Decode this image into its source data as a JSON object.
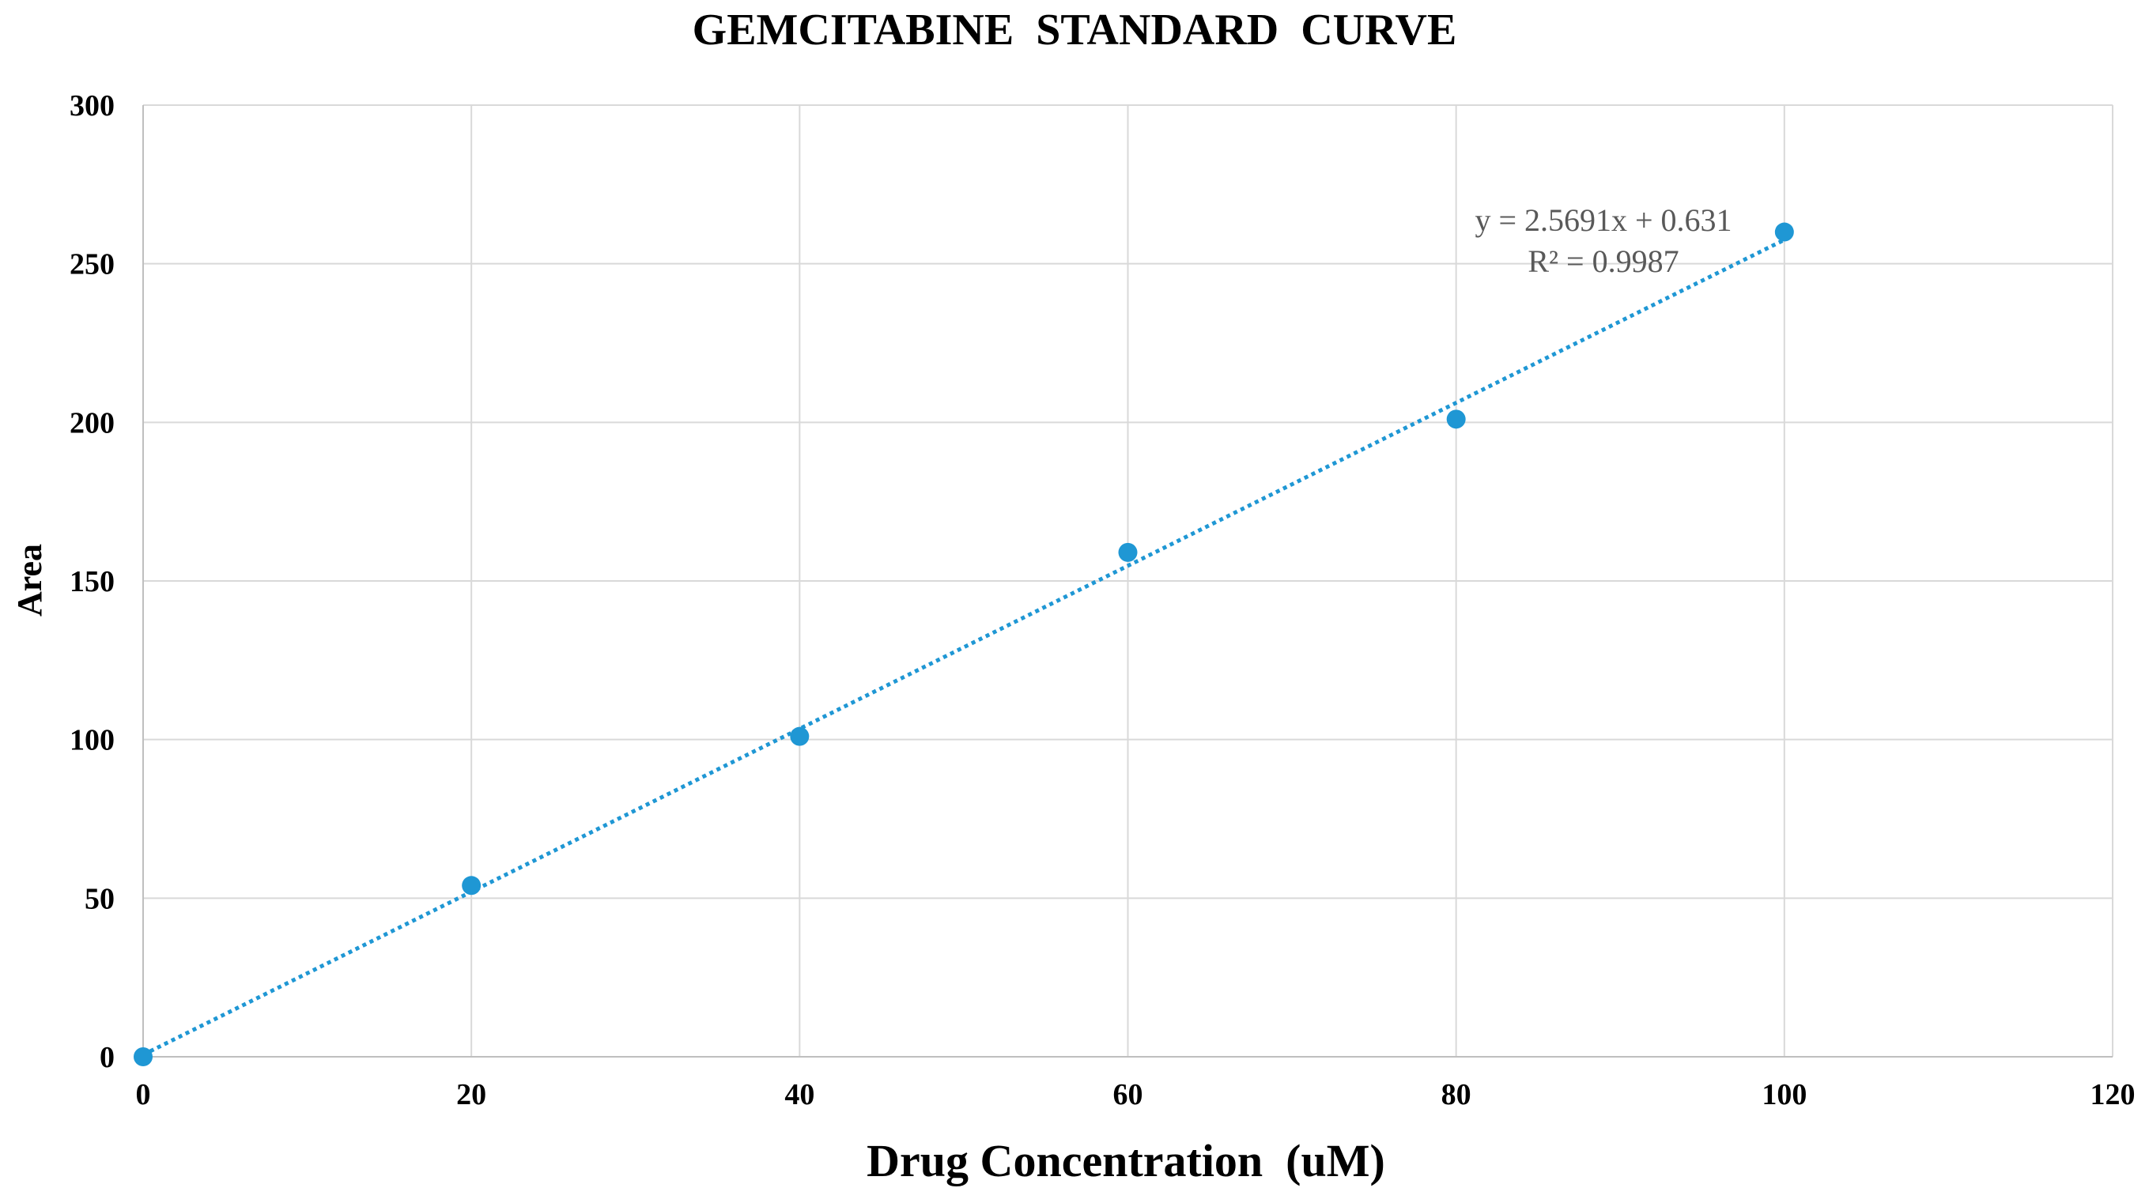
{
  "chart_data": {
    "type": "scatter",
    "title": "GEMCITABINE  STANDARD  CURVE",
    "xlabel": "Drug Concentration  (uM)",
    "ylabel": "Area",
    "xlim": [
      0,
      120
    ],
    "ylim": [
      0,
      300
    ],
    "xticks": [
      0,
      20,
      40,
      60,
      80,
      100,
      120
    ],
    "yticks": [
      0,
      50,
      100,
      150,
      200,
      250,
      300
    ],
    "grid": true,
    "series": [
      {
        "name": "Gemcitabine",
        "color": "#1F97D4",
        "points": [
          {
            "x": 0,
            "y": 0
          },
          {
            "x": 20,
            "y": 54
          },
          {
            "x": 40,
            "y": 101
          },
          {
            "x": 60,
            "y": 159
          },
          {
            "x": 80,
            "y": 201
          },
          {
            "x": 100,
            "y": 260
          }
        ]
      }
    ],
    "trendline": {
      "type": "linear",
      "slope": 2.5691,
      "intercept": 0.631,
      "x_range": [
        0,
        100
      ],
      "color": "#1F97D4",
      "equation": "y = 2.5691x + 0.631",
      "r_squared": "R² = 0.9987"
    }
  }
}
